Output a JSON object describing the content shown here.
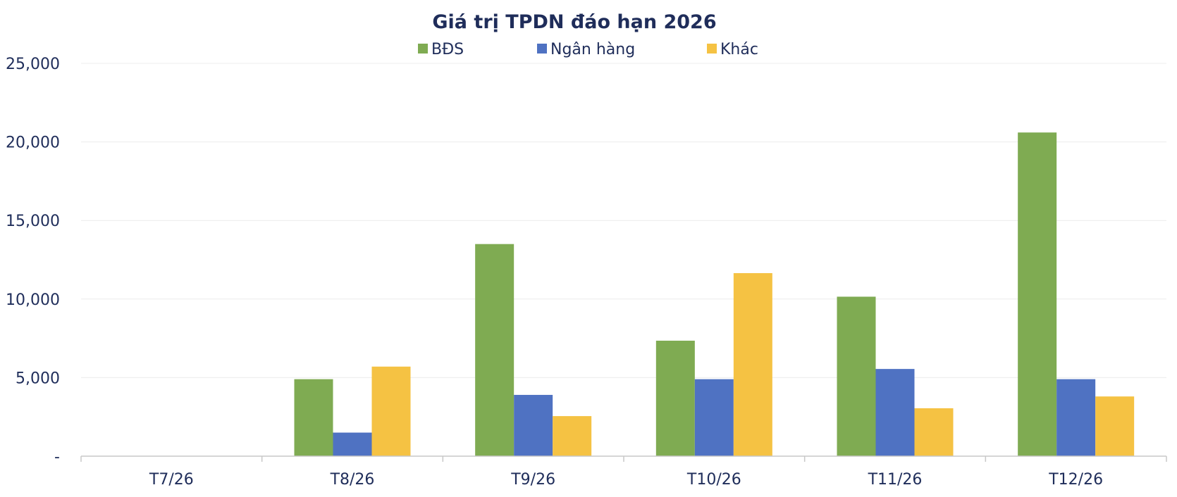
{
  "chart_data": {
    "type": "bar",
    "title": "Giá trị TPDN đáo hạn 2026",
    "categories": [
      "T7/26",
      "T8/26",
      "T9/26",
      "T10/26",
      "T11/26",
      "T12/26"
    ],
    "series": [
      {
        "name": "BĐS",
        "color": "#7fab52",
        "values": [
          0,
          4900,
          13500,
          7350,
          10150,
          20600
        ]
      },
      {
        "name": "Ngân hàng",
        "color": "#4f72c2",
        "values": [
          0,
          1500,
          3900,
          4900,
          5550,
          4900
        ]
      },
      {
        "name": "Khác",
        "color": "#f5c243",
        "values": [
          0,
          5700,
          2550,
          11650,
          3050,
          3800
        ]
      }
    ],
    "ylim": [
      0,
      25000
    ],
    "yticks": [
      0,
      5000,
      10000,
      15000,
      20000,
      25000
    ],
    "ytick_labels": [
      "-",
      "5,000",
      "10,000",
      "15,000",
      "20,000",
      "25,000"
    ],
    "grid": true,
    "legend_position": "top-center"
  }
}
